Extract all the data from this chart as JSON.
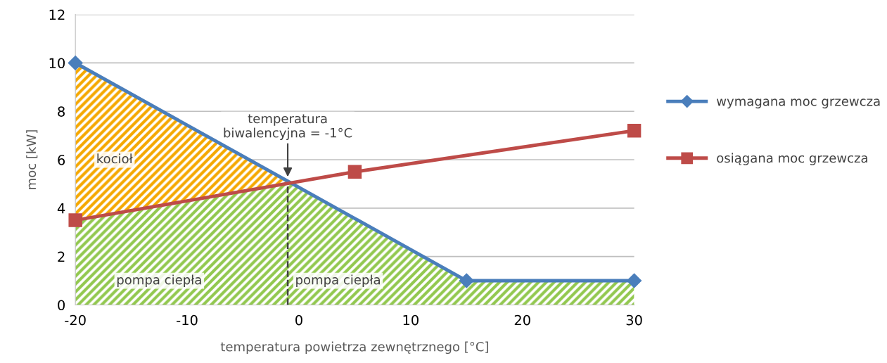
{
  "chart_data": {
    "type": "line",
    "xlabel": "temperatura powietrza zewnętrznego [°C]",
    "ylabel": "moc [kW]",
    "xlim": [
      -20,
      30
    ],
    "xticks": [
      -20,
      -10,
      0,
      10,
      20,
      30
    ],
    "ylim": [
      0,
      12
    ],
    "yticks": [
      0,
      2,
      4,
      6,
      8,
      10,
      12
    ],
    "grid": "y",
    "legend": "right",
    "series": [
      {
        "name": "wymagana moc grzewcza",
        "color": "#4a7ebb",
        "marker": "diamond",
        "x": [
          -20,
          15,
          30
        ],
        "values": [
          10,
          1,
          1
        ]
      },
      {
        "name": "osiągana moc grzewcza",
        "color": "#be4b48",
        "marker": "square",
        "x": [
          -20,
          5,
          30
        ],
        "values": [
          3.5,
          5.5,
          7.2
        ]
      }
    ],
    "ref_lines": [
      {
        "axis": "x",
        "value": -1,
        "label": "temperatura\nbiwalencyjna = -1°C",
        "line_style": "dashed",
        "color": "#404040"
      }
    ],
    "annotations": [
      "kocioł",
      "pompa ciepła",
      "pompa ciepła"
    ]
  }
}
